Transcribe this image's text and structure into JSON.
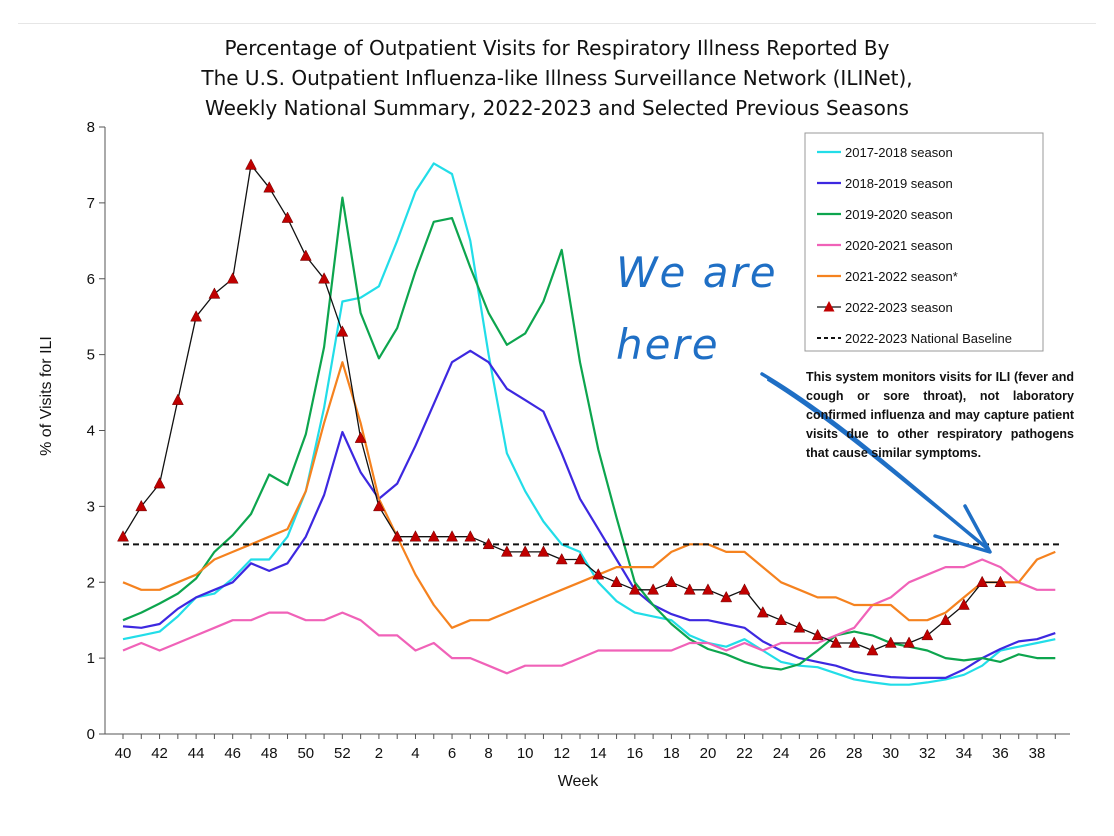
{
  "title_lines": [
    "Percentage of Outpatient Visits for Respiratory Illness Reported By",
    "The U.S. Outpatient Influenza-like Illness Surveillance Network (ILINet),",
    "Weekly National Summary, 2022-2023 and Selected Previous Seasons"
  ],
  "note": "This system monitors visits for ILI (fever and cough or sore throat), not laboratory confirmed influenza and may capture patient visits due to other respiratory pathogens that cause similar symptoms.",
  "annotation": {
    "line1": "We are",
    "line2": "here",
    "color": "#1f6fc5"
  },
  "chart_data": {
    "type": "line",
    "title": "Percentage of Outpatient Visits for Respiratory Illness Reported By The U.S. Outpatient Influenza-like Illness Surveillance Network (ILINet), Weekly National Summary, 2022-2023 and Selected Previous Seasons",
    "xlabel": "Week",
    "ylabel": "% of Visits for ILI",
    "ylim": [
      0,
      8
    ],
    "yticks": [
      "0",
      "1",
      "2",
      "3",
      "4",
      "5",
      "6",
      "7",
      "8"
    ],
    "weeks": [
      40,
      41,
      42,
      43,
      44,
      45,
      46,
      47,
      48,
      49,
      50,
      51,
      52,
      1,
      2,
      3,
      4,
      5,
      6,
      7,
      8,
      9,
      10,
      11,
      12,
      13,
      14,
      15,
      16,
      17,
      18,
      19,
      20,
      21,
      22,
      23,
      24,
      25,
      26,
      27,
      28,
      29,
      30,
      31,
      32,
      33,
      34,
      35,
      36,
      37,
      38,
      39
    ],
    "xtick_labels": [
      "40",
      "42",
      "44",
      "46",
      "48",
      "50",
      "52",
      "2",
      "4",
      "6",
      "8",
      "10",
      "12",
      "14",
      "16",
      "18",
      "20",
      "22",
      "24",
      "26",
      "28",
      "30",
      "32",
      "34",
      "36",
      "38"
    ],
    "legend_position": "top-right",
    "grid": false,
    "series": [
      {
        "name": "2017-2018 season",
        "color": "#22dde8",
        "values": [
          1.25,
          1.3,
          1.35,
          1.55,
          1.8,
          1.85,
          2.05,
          2.3,
          2.3,
          2.6,
          3.2,
          4.3,
          5.7,
          5.75,
          5.9,
          6.5,
          7.15,
          7.52,
          7.38,
          6.5,
          5.0,
          3.7,
          3.2,
          2.8,
          2.5,
          2.4,
          2.0,
          1.75,
          1.6,
          1.55,
          1.5,
          1.3,
          1.2,
          1.15,
          1.25,
          1.1,
          0.95,
          0.9,
          0.88,
          0.8,
          0.72,
          0.68,
          0.65,
          0.65,
          0.68,
          0.72,
          0.78,
          0.9,
          1.1,
          1.15,
          1.2,
          1.25
        ]
      },
      {
        "name": "2018-2019 season",
        "color": "#3d28e0",
        "values": [
          1.42,
          1.4,
          1.45,
          1.65,
          1.8,
          1.9,
          2.0,
          2.25,
          2.15,
          2.25,
          2.6,
          3.15,
          3.98,
          3.45,
          3.1,
          3.3,
          3.8,
          4.35,
          4.9,
          5.05,
          4.9,
          4.55,
          4.4,
          4.25,
          3.7,
          3.1,
          2.7,
          2.3,
          1.9,
          1.7,
          1.58,
          1.5,
          1.5,
          1.45,
          1.4,
          1.22,
          1.1,
          1.0,
          0.95,
          0.9,
          0.82,
          0.78,
          0.75,
          0.74,
          0.74,
          0.74,
          0.85,
          1.0,
          1.12,
          1.22,
          1.25,
          1.33
        ]
      },
      {
        "name": "2019-2020 season",
        "color": "#0da54e",
        "values": [
          1.5,
          1.6,
          1.72,
          1.85,
          2.05,
          2.4,
          2.62,
          2.9,
          3.42,
          3.28,
          3.95,
          5.1,
          7.07,
          5.55,
          4.95,
          5.35,
          6.1,
          6.75,
          6.8,
          6.15,
          5.55,
          5.13,
          5.28,
          5.7,
          6.38,
          4.9,
          3.75,
          2.85,
          2.0,
          1.7,
          1.45,
          1.25,
          1.12,
          1.05,
          0.95,
          0.88,
          0.85,
          0.92,
          1.1,
          1.3,
          1.35,
          1.3,
          1.2,
          1.15,
          1.1,
          1.0,
          0.97,
          1.0,
          0.95,
          1.05,
          1.0,
          1.0
        ]
      },
      {
        "name": "2020-2021 season",
        "color": "#f062b8",
        "values": [
          1.1,
          1.2,
          1.1,
          1.2,
          1.3,
          1.4,
          1.5,
          1.5,
          1.6,
          1.6,
          1.5,
          1.5,
          1.6,
          1.5,
          1.3,
          1.3,
          1.1,
          1.2,
          1.0,
          1.0,
          0.9,
          0.8,
          0.9,
          0.9,
          0.9,
          1.0,
          1.1,
          1.1,
          1.1,
          1.1,
          1.1,
          1.2,
          1.2,
          1.1,
          1.2,
          1.1,
          1.2,
          1.2,
          1.2,
          1.3,
          1.4,
          1.7,
          1.8,
          2.0,
          2.1,
          2.2,
          2.2,
          2.3,
          2.2,
          2.0,
          1.9,
          1.9
        ]
      },
      {
        "name": "2021-2022 season*",
        "color": "#f5821f",
        "values": [
          2.0,
          1.9,
          1.9,
          2.0,
          2.1,
          2.3,
          2.4,
          2.5,
          2.6,
          2.7,
          3.2,
          4.1,
          4.9,
          4.1,
          3.1,
          2.6,
          2.1,
          1.7,
          1.4,
          1.5,
          1.5,
          1.6,
          1.7,
          1.8,
          1.9,
          2.0,
          2.1,
          2.2,
          2.2,
          2.2,
          2.4,
          2.5,
          2.5,
          2.4,
          2.4,
          2.2,
          2.0,
          1.9,
          1.8,
          1.8,
          1.7,
          1.7,
          1.7,
          1.5,
          1.5,
          1.6,
          1.8,
          2.0,
          2.0,
          2.0,
          2.3,
          2.4
        ]
      },
      {
        "name": "2022-2023 season",
        "color": "#111111",
        "marker_color": "#c00000",
        "values": [
          2.6,
          3.0,
          3.3,
          4.4,
          5.5,
          5.8,
          6.0,
          7.5,
          7.2,
          6.8,
          6.3,
          6.0,
          5.3,
          3.9,
          3.0,
          2.6,
          2.6,
          2.6,
          2.6,
          2.6,
          2.5,
          2.4,
          2.4,
          2.4,
          2.3,
          2.3,
          2.1,
          2.0,
          1.9,
          1.9,
          2.0,
          1.9,
          1.9,
          1.8,
          1.9,
          1.6,
          1.5,
          1.4,
          1.3,
          1.2,
          1.2,
          1.1,
          1.2,
          1.2,
          1.3,
          1.5,
          1.7,
          2.0,
          2.0
        ]
      },
      {
        "name": "2022-2023 National Baseline",
        "color": "#111111",
        "dashed": true,
        "values": [
          2.5
        ]
      }
    ]
  }
}
